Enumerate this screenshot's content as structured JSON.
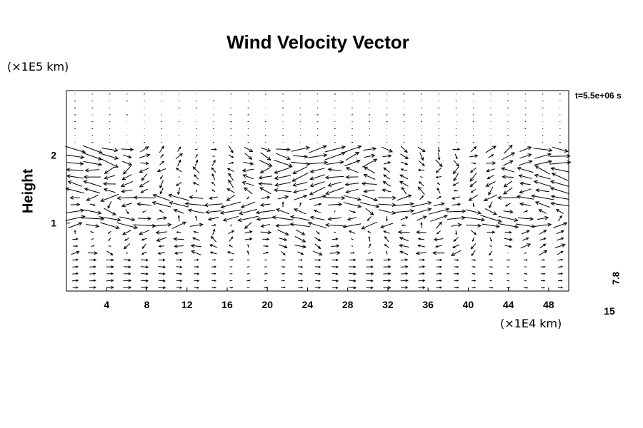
{
  "chart_data": {
    "type": "quiver",
    "title": "Wind Velocity Vector",
    "ylabel": "Height",
    "y_unit_label": "(×1E5 km)",
    "x_unit_label": "(×1E4 km)",
    "timestamp": "t=5.5e+06 s",
    "reference_vector": {
      "value": "7.8",
      "length_label": "15"
    },
    "xlim": [
      0,
      50
    ],
    "ylim": [
      0,
      2.95
    ],
    "x_ticks": [
      4,
      8,
      12,
      16,
      20,
      24,
      28,
      32,
      36,
      40,
      44,
      48
    ],
    "y_ticks": [
      1,
      2
    ],
    "grid": false,
    "field": {
      "x_count": 29,
      "y_count": 29,
      "description_bands": [
        {
          "y_range": [
            0.0,
            0.5
          ],
          "flow": "weak eastward"
        },
        {
          "y_range": [
            0.5,
            0.9
          ],
          "flow": "mixed, oscillating"
        },
        {
          "y_range": [
            0.9,
            1.4
          ],
          "flow": "strong shear layer"
        },
        {
          "y_range": [
            1.4,
            2.1
          ],
          "flow": "strong westward/eastward jets"
        },
        {
          "y_range": [
            2.1,
            2.95
          ],
          "flow": "calm"
        }
      ]
    }
  }
}
